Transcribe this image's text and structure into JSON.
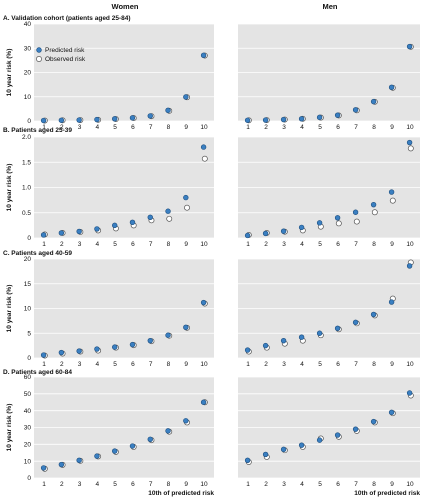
{
  "figure": {
    "col_headers": [
      "Women",
      "Men"
    ],
    "legend": {
      "predicted": "Predicted risk",
      "observed": "Observed risk"
    },
    "colors": {
      "panel_bg": "#e4e4e4",
      "predicted_fill": "#3a7fc1",
      "predicted_stroke": "#1f4f7f",
      "observed_fill": "#ffffff",
      "observed_stroke": "#555555"
    }
  },
  "chart_data": [
    {
      "type": "scatter",
      "panel": "A",
      "title": "A. Validation cohort (patients aged 25-84)",
      "sex": "Women",
      "ylabel": "10 year risk (%)",
      "xlabel": "",
      "ylim": [
        0,
        40
      ],
      "yticks": [
        0,
        10,
        20,
        30,
        40
      ],
      "grid": true,
      "x": [
        1,
        2,
        3,
        4,
        5,
        6,
        7,
        8,
        9,
        10
      ],
      "series": [
        {
          "name": "Predicted risk",
          "values": [
            0.2,
            0.3,
            0.4,
            0.6,
            0.9,
            1.3,
            2.1,
            4.4,
            9.9,
            27.1
          ]
        },
        {
          "name": "Observed risk",
          "values": [
            0.2,
            0.3,
            0.4,
            0.5,
            0.8,
            1.2,
            2.0,
            4.2,
            9.8,
            27.0
          ]
        }
      ],
      "legend": "top-left"
    },
    {
      "type": "scatter",
      "panel": "A",
      "title": "",
      "sex": "Men",
      "ylabel": "",
      "xlabel": "",
      "ylim": [
        0,
        40
      ],
      "yticks": [
        0,
        10,
        20,
        30,
        40
      ],
      "grid": true,
      "x": [
        1,
        2,
        3,
        4,
        5,
        6,
        7,
        8,
        9,
        10
      ],
      "series": [
        {
          "name": "Predicted risk",
          "values": [
            0.3,
            0.4,
            0.6,
            0.9,
            1.5,
            2.4,
            4.6,
            8.0,
            13.9,
            30.7
          ]
        },
        {
          "name": "Observed risk",
          "values": [
            0.3,
            0.4,
            0.6,
            0.9,
            1.4,
            2.3,
            4.4,
            7.9,
            13.7,
            30.6
          ]
        }
      ]
    },
    {
      "type": "scatter",
      "panel": "B",
      "title": "B. Patients aged 25-39",
      "sex": "Women",
      "ylabel": "10 year risk (%)",
      "xlabel": "",
      "ylim": [
        0,
        2
      ],
      "yticks": [
        0,
        0.5,
        1.0,
        1.5,
        2.0
      ],
      "grid": true,
      "x": [
        1,
        2,
        3,
        4,
        5,
        6,
        7,
        8,
        9,
        10
      ],
      "series": [
        {
          "name": "Predicted risk",
          "values": [
            0.06,
            0.1,
            0.13,
            0.18,
            0.25,
            0.31,
            0.41,
            0.53,
            0.8,
            1.8
          ]
        },
        {
          "name": "Observed risk",
          "values": [
            0.07,
            0.1,
            0.12,
            0.15,
            0.19,
            0.25,
            0.35,
            0.38,
            0.6,
            1.57
          ]
        }
      ]
    },
    {
      "type": "scatter",
      "panel": "B",
      "title": "",
      "sex": "Men",
      "ylabel": "",
      "xlabel": "",
      "ylim": [
        0,
        4
      ],
      "yticks": [
        0,
        1,
        2,
        3,
        4
      ],
      "grid": true,
      "x": [
        1,
        2,
        3,
        4,
        5,
        6,
        7,
        8,
        9,
        10
      ],
      "series": [
        {
          "name": "Predicted risk",
          "values": [
            0.1,
            0.18,
            0.27,
            0.42,
            0.6,
            0.8,
            1.02,
            1.32,
            1.82,
            3.78
          ]
        },
        {
          "name": "Observed risk",
          "values": [
            0.12,
            0.2,
            0.25,
            0.3,
            0.45,
            0.58,
            0.65,
            1.02,
            1.48,
            3.55
          ]
        }
      ]
    },
    {
      "type": "scatter",
      "panel": "C",
      "title": "C. Patients aged 40-59",
      "sex": "Women",
      "ylabel": "10 year risk (%)",
      "xlabel": "",
      "ylim": [
        0,
        20
      ],
      "yticks": [
        0,
        5,
        10,
        15,
        20
      ],
      "grid": true,
      "x": [
        1,
        2,
        3,
        4,
        5,
        6,
        7,
        8,
        9,
        10
      ],
      "series": [
        {
          "name": "Predicted risk",
          "values": [
            0.6,
            1.1,
            1.4,
            1.8,
            2.2,
            2.7,
            3.5,
            4.6,
            6.2,
            11.2
          ]
        },
        {
          "name": "Observed risk",
          "values": [
            0.5,
            0.9,
            1.3,
            1.5,
            2.1,
            2.6,
            3.4,
            4.5,
            6.1,
            11.0
          ]
        }
      ]
    },
    {
      "type": "scatter",
      "panel": "C",
      "title": "",
      "sex": "Men",
      "ylabel": "",
      "xlabel": "",
      "ylim": [
        0,
        20
      ],
      "yticks": [
        0,
        5,
        10,
        15,
        20
      ],
      "grid": true,
      "x": [
        1,
        2,
        3,
        4,
        5,
        6,
        7,
        8,
        9,
        10
      ],
      "series": [
        {
          "name": "Predicted risk",
          "values": [
            1.6,
            2.5,
            3.5,
            4.2,
            5.0,
            6.0,
            7.2,
            8.8,
            11.3,
            18.6
          ]
        },
        {
          "name": "Observed risk",
          "values": [
            1.3,
            2.1,
            2.9,
            3.5,
            4.6,
            5.8,
            7.0,
            8.6,
            12.0,
            19.3
          ]
        }
      ]
    },
    {
      "type": "scatter",
      "panel": "D",
      "title": "D. Patients aged 60-84",
      "sex": "Women",
      "ylabel": "10 year risk (%)",
      "xlabel": "10th of predicted risk",
      "ylim": [
        0,
        60
      ],
      "yticks": [
        0,
        10,
        20,
        30,
        40,
        50,
        60
      ],
      "grid": true,
      "x": [
        1,
        2,
        3,
        4,
        5,
        6,
        7,
        8,
        9,
        10
      ],
      "series": [
        {
          "name": "Predicted risk",
          "values": [
            6,
            8,
            10.5,
            13,
            16,
            19,
            23,
            28,
            34,
            45
          ]
        },
        {
          "name": "Observed risk",
          "values": [
            5.5,
            7.8,
            10.2,
            12.8,
            15.5,
            18.5,
            22.5,
            27.5,
            33,
            45
          ]
        }
      ]
    },
    {
      "type": "scatter",
      "panel": "D",
      "title": "",
      "sex": "Men",
      "ylabel": "",
      "xlabel": "10th of predicted risk",
      "ylim": [
        0,
        60
      ],
      "yticks": [
        0,
        10,
        20,
        30,
        40,
        50,
        60
      ],
      "grid": true,
      "x": [
        1,
        2,
        3,
        4,
        5,
        6,
        7,
        8,
        9,
        10
      ],
      "series": [
        {
          "name": "Predicted risk",
          "values": [
            10.5,
            14,
            17,
            19.5,
            22.5,
            25.5,
            29,
            33.5,
            39,
            50.5
          ]
        },
        {
          "name": "Observed risk",
          "values": [
            9.5,
            12.5,
            16.5,
            18.5,
            23.5,
            24.5,
            28,
            33,
            38.5,
            49
          ]
        }
      ]
    }
  ]
}
